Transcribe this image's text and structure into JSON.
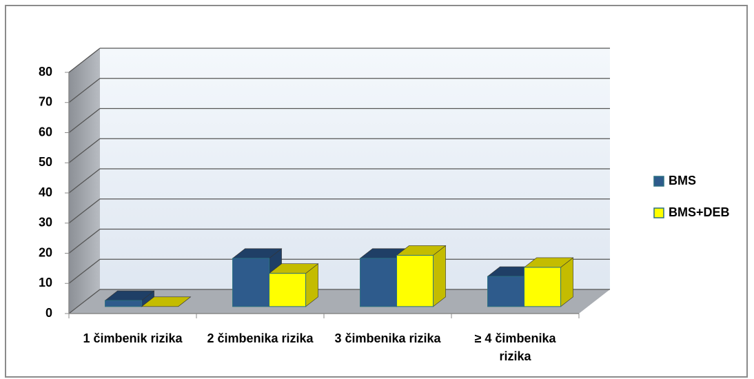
{
  "chart_data": {
    "type": "bar3d",
    "categories": [
      "1 čimbenik rizika",
      "2 čimbenika rizika",
      "3 čimbenika rizika",
      "≥ 4 čimbenika rizika"
    ],
    "series": [
      {
        "name": "BMS",
        "color": "#2e5b8c",
        "values": [
          2,
          16,
          16,
          10
        ]
      },
      {
        "name": "BMS+DEB",
        "color": "#ffff00",
        "values": [
          0,
          11,
          17,
          13
        ]
      }
    ],
    "ylim": [
      0,
      80
    ],
    "yticks": [
      0,
      10,
      20,
      30,
      40,
      50,
      60,
      70,
      80
    ],
    "grid": true,
    "legend": "right"
  }
}
